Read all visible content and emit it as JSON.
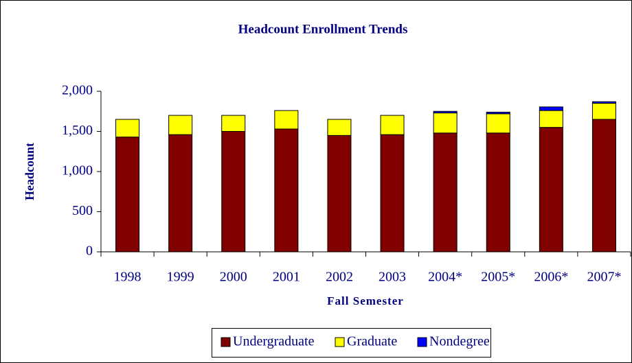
{
  "chart_data": {
    "type": "bar",
    "stacked": true,
    "title": "Headcount Enrollment Trends",
    "x_label": "Fall Semester",
    "y_label": "Headcount",
    "categories": [
      "1998",
      "1999",
      "2000",
      "2001",
      "2002",
      "2003",
      "2004*",
      "2005*",
      "2006*",
      "2007*"
    ],
    "series": [
      {
        "name": "Undergraduate",
        "color": "#800000",
        "values": [
          1430,
          1460,
          1500,
          1530,
          1450,
          1460,
          1480,
          1480,
          1550,
          1650
        ]
      },
      {
        "name": "Graduate",
        "color": "#ffff00",
        "values": [
          220,
          240,
          200,
          230,
          200,
          240,
          250,
          240,
          210,
          200
        ]
      },
      {
        "name": "Nondegree",
        "color": "#0000ff",
        "values": [
          0,
          0,
          0,
          0,
          0,
          0,
          20,
          20,
          45,
          20
        ]
      }
    ],
    "ylim": [
      0,
      2000
    ],
    "yticks": [
      0,
      500,
      {
        "value": 1000,
        "label": "1,000"
      },
      {
        "value": 1500,
        "label": "1,500"
      },
      {
        "value": 2000,
        "label": "2,000"
      }
    ],
    "grid": false,
    "legend": "bottom"
  }
}
